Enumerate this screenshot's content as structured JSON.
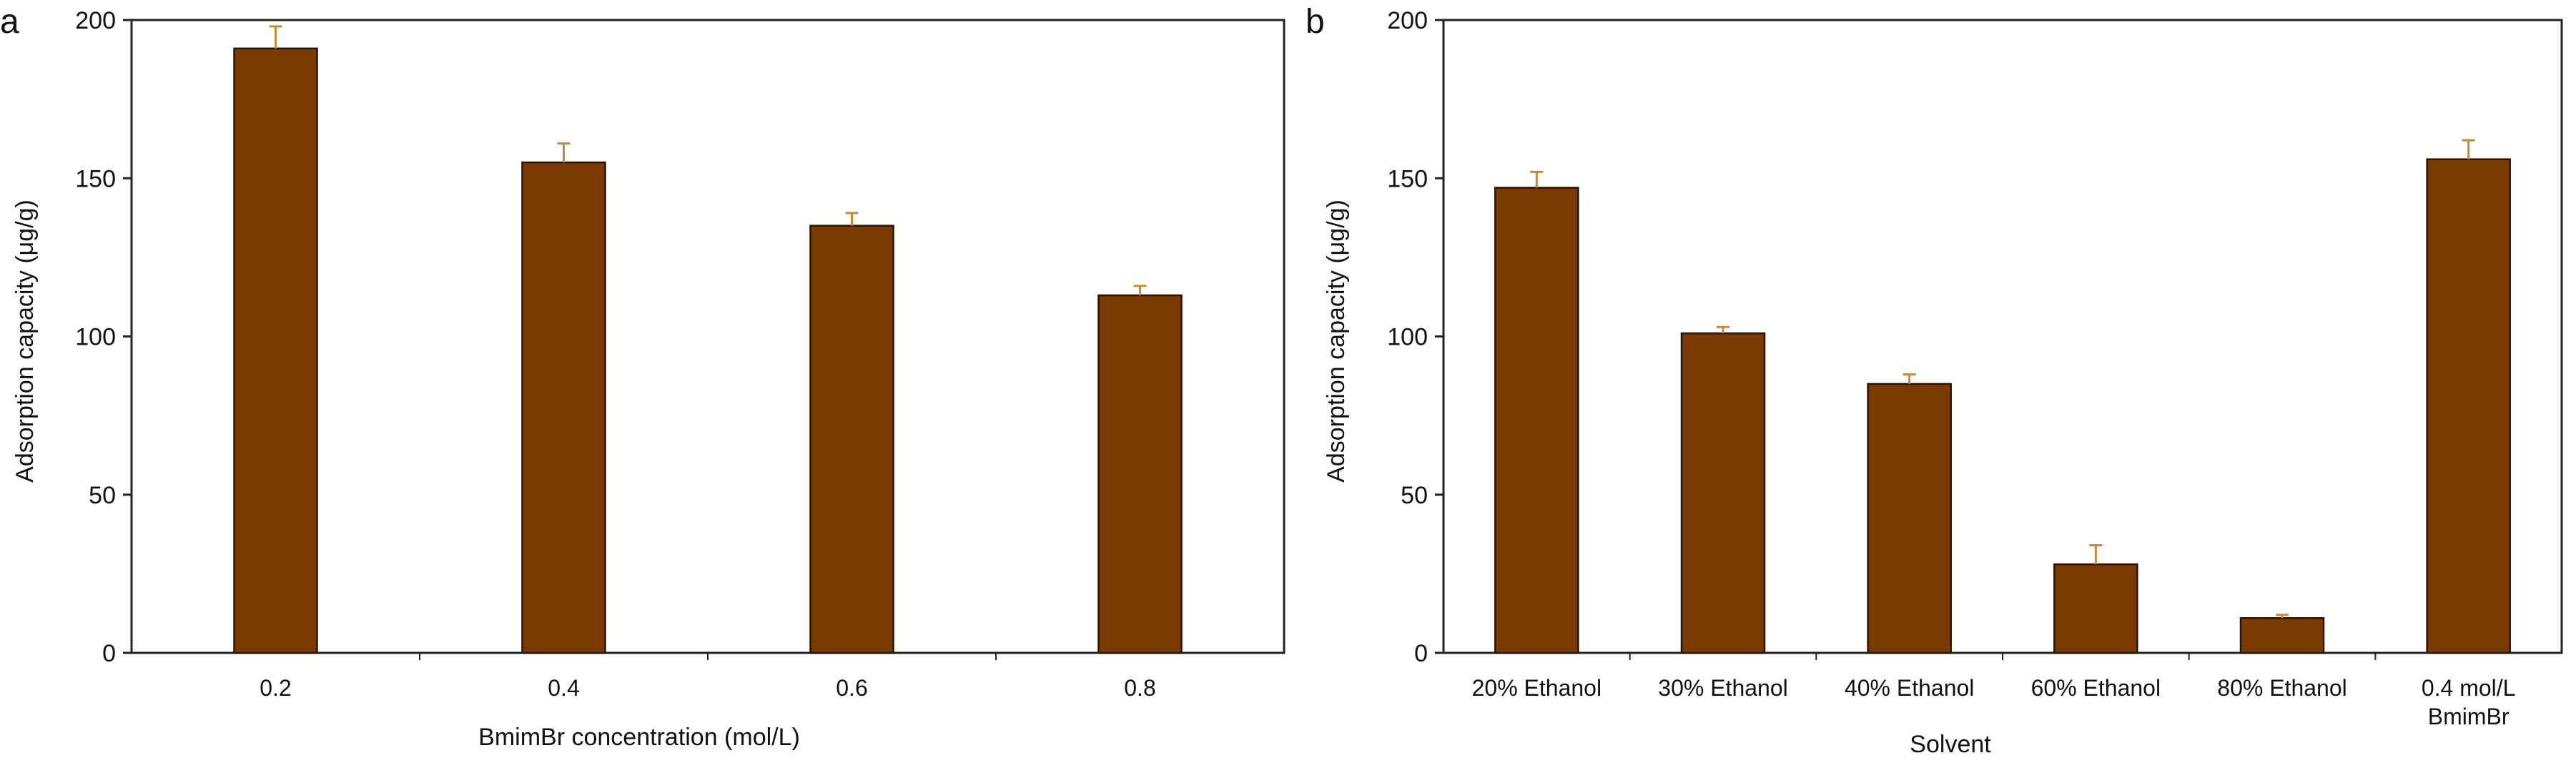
{
  "chart_data": [
    {
      "panel_label": "a",
      "type": "bar",
      "xlabel": "BmimBr concentration (mol/L)",
      "ylabel": "Adsorption capacity (μg/g)",
      "ylim": [
        0,
        200
      ],
      "yticks": [
        0,
        50,
        100,
        150,
        200
      ],
      "grid": false,
      "categories": [
        [
          "0.2"
        ],
        [
          "0.4"
        ],
        [
          "0.6"
        ],
        [
          "0.8"
        ]
      ],
      "values": [
        191,
        155,
        135,
        113
      ],
      "errors": [
        7,
        6,
        4,
        3
      ],
      "bar_color": "#7a3a00",
      "error_bar_color": "#c8893a"
    },
    {
      "panel_label": "b",
      "type": "bar",
      "xlabel": "Solvent",
      "ylabel": "Adsorption capacity (μg/g)",
      "ylim": [
        0,
        200
      ],
      "yticks": [
        0,
        50,
        100,
        150,
        200
      ],
      "grid": false,
      "categories": [
        [
          "20% Ethanol"
        ],
        [
          "30% Ethanol"
        ],
        [
          "40% Ethanol"
        ],
        [
          "60% Ethanol"
        ],
        [
          "80% Ethanol"
        ],
        [
          "0.4 mol/L",
          "BmimBr"
        ]
      ],
      "values": [
        147,
        101,
        85,
        28,
        11,
        156
      ],
      "errors": [
        5,
        2,
        3,
        6,
        1,
        6
      ],
      "bar_color": "#7a3a00",
      "error_bar_color": "#c8893a"
    }
  ]
}
